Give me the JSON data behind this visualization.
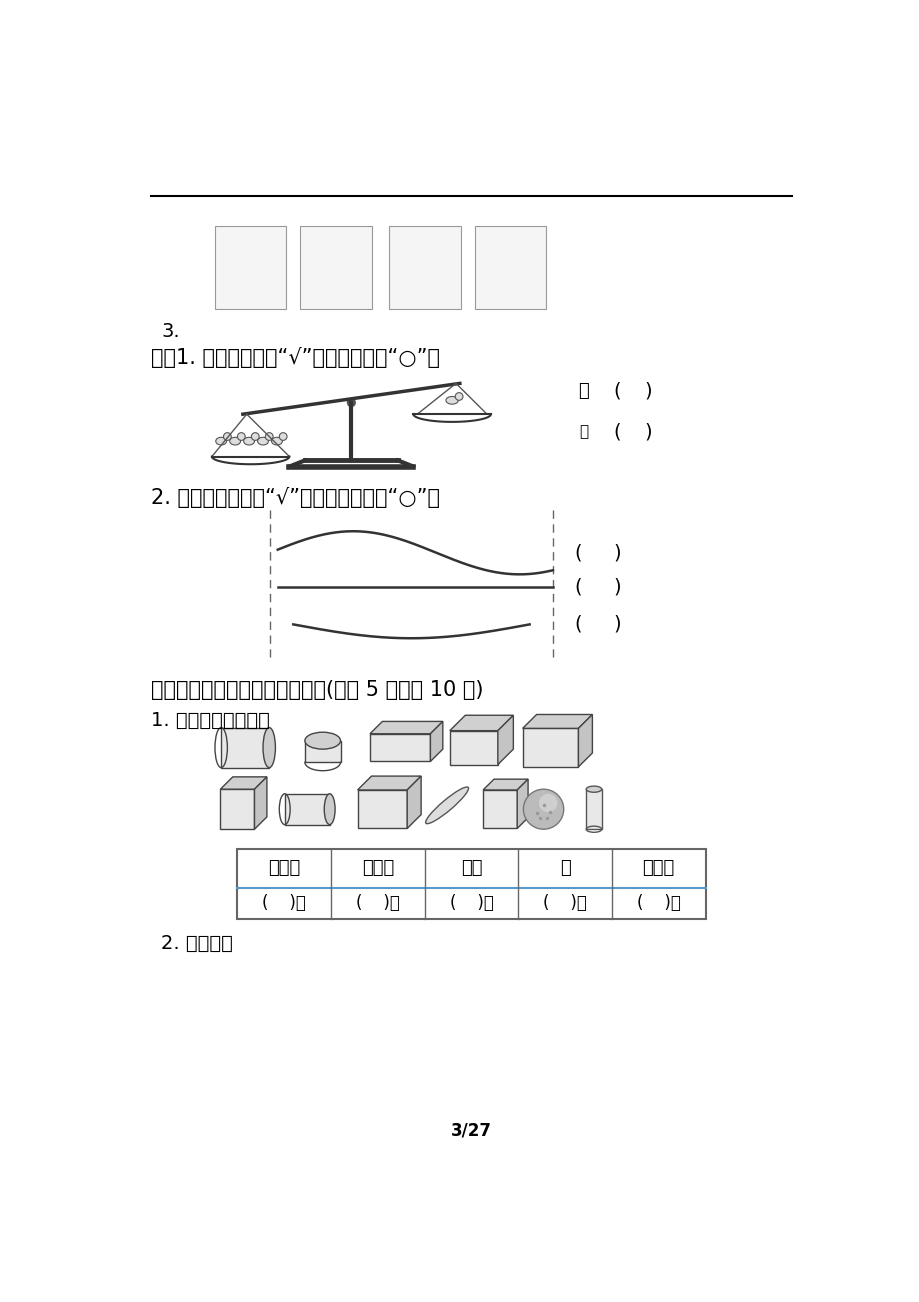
{
  "bg_color": "#ffffff",
  "text_color": "#000000",
  "section3_label": "3.",
  "section4_title": "四、1. 在重的下面画“√”，轻的下面画“○”。",
  "section4_2_title": "2. 在最长的后面画“√”，最短的后面画“○”。",
  "section5_title": "五、想一想，算一算，填一填。(每题 5 分，共 10 分)",
  "section5_1_title": "1. 数一数，填一填。",
  "section5_2_title": "2. 猜一猜。",
  "table_headers": [
    "长方体",
    "正方体",
    "圆柱",
    "球",
    "一共有"
  ],
  "table_row2": [
    "(    )个",
    "(    )个",
    "(    )个",
    "(    )个",
    "(    )个"
  ],
  "page_num": "3/27",
  "font_size_title": 15,
  "font_size_label": 14
}
